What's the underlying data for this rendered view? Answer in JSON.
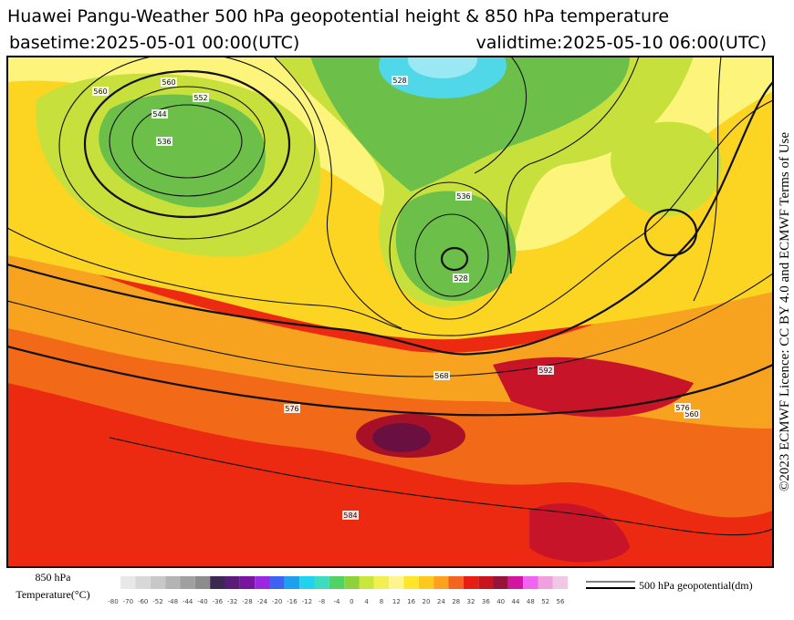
{
  "header": {
    "title": "Huawei Pangu-Weather 500 hPa geopotential height & 850 hPa temperature",
    "basetime": "basetime:2025-05-01 00:00(UTC)",
    "validtime": "validtime:2025-05-10 06:00(UTC)"
  },
  "side_note": "©2023 ECMWF Licence: CC BY 4.0 and ECMWF Terms of Use",
  "map": {
    "contour_labels": [
      "560",
      "544",
      "552",
      "528",
      "536",
      "560",
      "568",
      "576",
      "584",
      "592",
      "536",
      "528",
      "560",
      "576"
    ]
  },
  "legend": {
    "temperature_title": "850 hPa",
    "temperature_unit": "Temperature(°C)",
    "colorbar_ticks": [
      -80,
      -70,
      -60,
      -52,
      -48,
      -44,
      -40,
      -36,
      -32,
      -28,
      -24,
      -20,
      -16,
      -12,
      -8,
      -4,
      0,
      4,
      8,
      12,
      16,
      20,
      24,
      28,
      32,
      36,
      40,
      44,
      48,
      52,
      56
    ],
    "colors": [
      "#e8e8e8",
      "#d8d8d8",
      "#c8c8c8",
      "#b4b4b4",
      "#a0a0a0",
      "#8c8c8c",
      "#3c2850",
      "#5a1c78",
      "#7814a0",
      "#9a28e0",
      "#3c64f0",
      "#1ea0f0",
      "#1ed2f0",
      "#3cdcbe",
      "#50d264",
      "#8cd23c",
      "#c8e63c",
      "#f0f050",
      "#fff58c",
      "#ffe628",
      "#ffc81e",
      "#ffa01e",
      "#f5641e",
      "#e61e14",
      "#c8141e",
      "#96143c",
      "#d214a0",
      "#f064f0",
      "#f0a0dc",
      "#f0c8e6"
    ],
    "contour_legend": "500 hPa geopotential(dm)"
  }
}
